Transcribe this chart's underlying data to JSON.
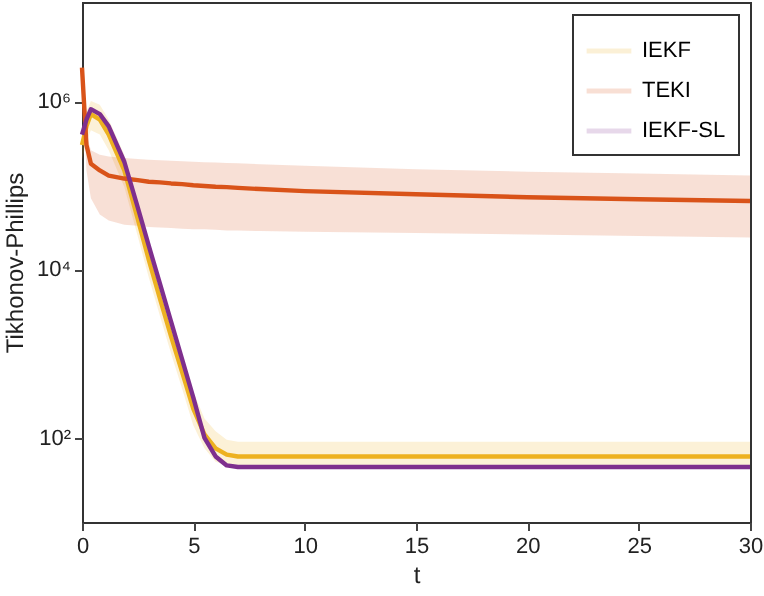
{
  "chart_data": {
    "type": "line",
    "xlabel": "t",
    "ylabel": "Tikhonov-Phillips",
    "log": "y",
    "x": [
      0,
      0.2,
      0.4,
      0.8,
      1.2,
      1.9,
      2.5,
      3,
      3.5,
      4,
      4.5,
      5,
      5.5,
      6,
      6.5,
      7,
      8,
      10,
      15,
      20,
      25,
      30
    ],
    "series": [
      {
        "name": "IEKF",
        "color": "#edb120",
        "values": [
          300000,
          500000,
          700000,
          600000,
          400000,
          150000,
          40000,
          13000,
          4500,
          1600,
          600,
          220,
          110,
          75,
          63,
          60,
          60,
          60,
          60,
          60,
          60,
          60
        ],
        "lower": [
          200000,
          330000,
          450000,
          400000,
          260000,
          95000,
          25000,
          8000,
          2800,
          1000,
          380,
          140,
          75,
          52,
          47,
          46,
          46,
          46,
          46,
          46,
          46,
          46
        ],
        "upper": [
          450000,
          750000,
          1000000,
          900000,
          600000,
          230000,
          62000,
          20000,
          7000,
          2500,
          950,
          350,
          170,
          120,
          95,
          90,
          90,
          90,
          90,
          90,
          90,
          90
        ]
      },
      {
        "name": "TEKI",
        "color": "#d95319",
        "values": [
          2500000,
          300000,
          180000,
          150000,
          130000,
          120000,
          115000,
          110000,
          108000,
          105000,
          103000,
          100000,
          98000,
          96000,
          95000,
          93000,
          90000,
          85000,
          78000,
          72000,
          68000,
          65000
        ],
        "lower": [
          2500000,
          150000,
          70000,
          45000,
          38000,
          34000,
          33000,
          32000,
          31500,
          31000,
          30500,
          30000,
          30000,
          29500,
          29000,
          29000,
          28500,
          28000,
          27000,
          26000,
          25000,
          24000
        ],
        "upper": [
          2500000,
          400000,
          260000,
          230000,
          220000,
          210000,
          205000,
          200000,
          198000,
          195000,
          192000,
          190000,
          188000,
          186000,
          184000,
          182000,
          178000,
          170000,
          155000,
          145000,
          138000,
          130000
        ]
      },
      {
        "name": "IEKF-SL",
        "color": "#7e2f8e",
        "values": [
          400000,
          600000,
          800000,
          700000,
          500000,
          190000,
          55000,
          19000,
          6800,
          2400,
          850,
          300,
          100,
          60,
          47,
          45,
          45,
          45,
          45,
          45,
          45,
          45
        ]
      }
    ],
    "xlim": [
      0,
      30
    ],
    "xticks": [
      0,
      5,
      10,
      15,
      20,
      25,
      30
    ],
    "ylim": [
      10,
      15000000
    ],
    "yticks": [
      {
        "value": 100,
        "label": "10²"
      },
      {
        "value": 10000,
        "label": "10⁴"
      },
      {
        "value": 1000000,
        "label": "10⁶"
      }
    ],
    "legend": "top right",
    "grid": false
  }
}
